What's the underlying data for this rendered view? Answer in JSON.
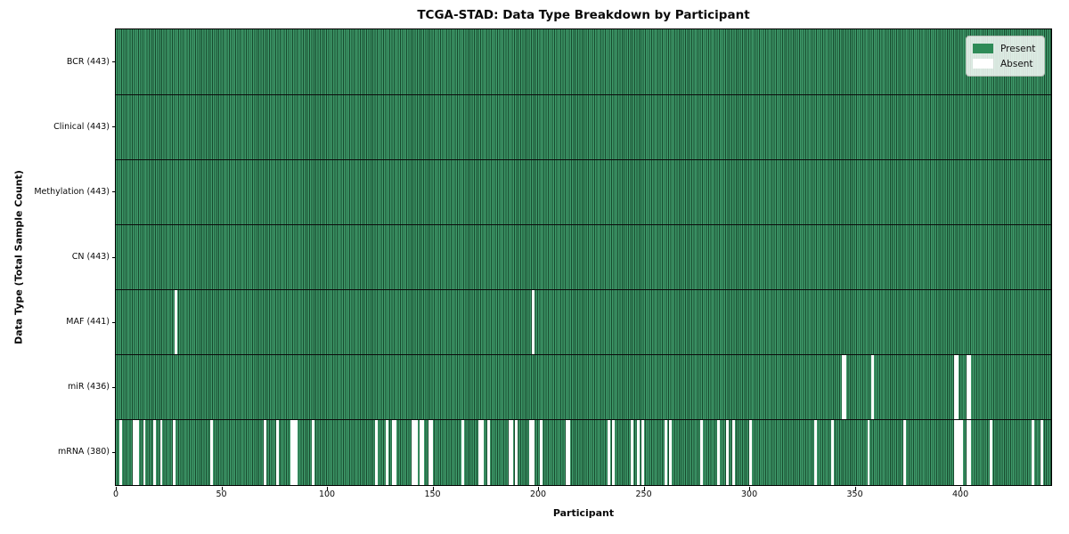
{
  "title": "TCGA-STAD: Data Type Breakdown by Participant",
  "axes": {
    "xlabel": "Participant",
    "ylabel": "Data Type (Total Sample Count)"
  },
  "legend": {
    "position": "upper right",
    "items": [
      {
        "label": "Present",
        "color": "#2e8b57"
      },
      {
        "label": "Absent",
        "color": "#ffffff"
      }
    ]
  },
  "chart_data": {
    "type": "heatmap",
    "title": "TCGA-STAD: Data Type Breakdown by Participant",
    "xlabel": "Participant",
    "ylabel": "Data Type (Total Sample Count)",
    "x_range": [
      0,
      443
    ],
    "x_ticks": [
      0,
      50,
      100,
      150,
      200,
      250,
      300,
      350,
      400
    ],
    "n_participants": 443,
    "grid": false,
    "colors": {
      "present_fill": "#2e8b57",
      "present_light_band": "#3f9b6b",
      "cell_edge_dark": "#17492d",
      "absent": "#ffffff",
      "row_divider": "#0b0b0b"
    },
    "rows": [
      {
        "label": "BCR (443)",
        "data_type": "BCR",
        "total_samples": 443,
        "absent_count": 0,
        "absent_participants": []
      },
      {
        "label": "Clinical (443)",
        "data_type": "Clinical",
        "total_samples": 443,
        "absent_count": 0,
        "absent_participants": []
      },
      {
        "label": "Methylation (443)",
        "data_type": "Methylation",
        "total_samples": 443,
        "absent_count": 0,
        "absent_participants": []
      },
      {
        "label": "CN (443)",
        "data_type": "CN",
        "total_samples": 443,
        "absent_count": 0,
        "absent_participants": []
      },
      {
        "label": "MAF (441)",
        "data_type": "MAF",
        "total_samples": 441,
        "absent_count": 2,
        "absent_participants": [
          28,
          197
        ]
      },
      {
        "label": "miR (436)",
        "data_type": "miR",
        "total_samples": 436,
        "absent_count": 7,
        "absent_participants": [
          344,
          345,
          358,
          397,
          398,
          403,
          404
        ]
      },
      {
        "label": "mRNA (380)",
        "data_type": "mRNA",
        "total_samples": 380,
        "absent_count": 63,
        "absent_participants": [
          2,
          8,
          9,
          10,
          13,
          18,
          21,
          27,
          45,
          70,
          76,
          83,
          84,
          85,
          93,
          123,
          128,
          131,
          132,
          140,
          141,
          142,
          144,
          145,
          148,
          149,
          164,
          172,
          173,
          176,
          186,
          187,
          189,
          196,
          197,
          201,
          213,
          214,
          233,
          235,
          244,
          247,
          249,
          260,
          262,
          277,
          285,
          289,
          292,
          300,
          331,
          339,
          356,
          373,
          397,
          398,
          399,
          400,
          403,
          404,
          414,
          434,
          438
        ]
      }
    ]
  }
}
